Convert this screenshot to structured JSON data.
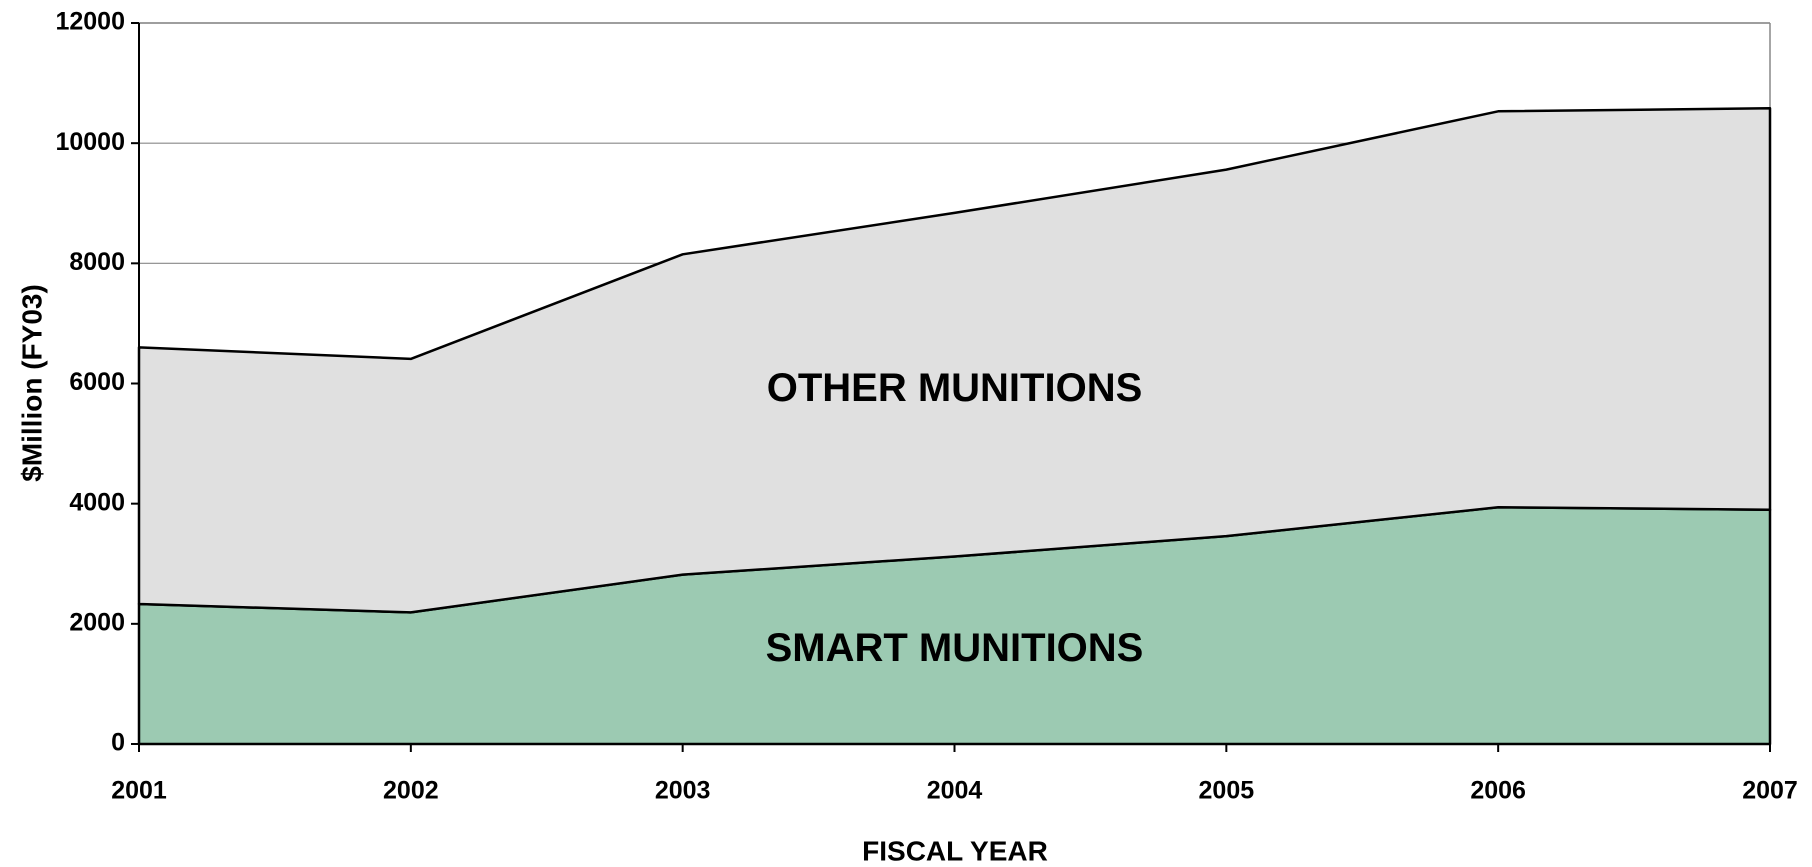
{
  "chart_data": {
    "type": "stacked-area",
    "x_label": "FISCAL YEAR",
    "y_label": "$Million (FY03)",
    "x": [
      2001,
      2002,
      2003,
      2004,
      2005,
      2006,
      2007
    ],
    "xlim": [
      2001,
      2007
    ],
    "xticks": [
      2001,
      2002,
      2003,
      2004,
      2005,
      2006,
      2007
    ],
    "ylim": [
      0,
      12000
    ],
    "yticks": [
      0,
      2000,
      4000,
      6000,
      8000,
      10000,
      12000
    ],
    "grid": true,
    "series": [
      {
        "name": "SMART MUNITIONS",
        "color": "#9ccab2",
        "values": [
          2330,
          2190,
          2820,
          3120,
          3460,
          3940,
          3900
        ]
      },
      {
        "name": "OTHER MUNITIONS",
        "color": "#e0e0e0",
        "values": [
          4270,
          4220,
          5330,
          5720,
          6100,
          6590,
          6680
        ]
      }
    ]
  }
}
